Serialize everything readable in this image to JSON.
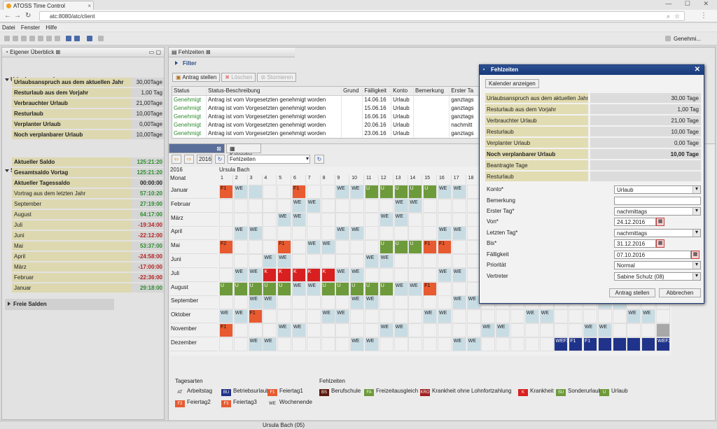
{
  "browser": {
    "tab_title": "ATOSS Time Control",
    "url": "atc:8080/atc/client"
  },
  "menu": [
    "Datei",
    "Fenster",
    "Hilfe"
  ],
  "toolbar_right": "Genehmi...",
  "left": {
    "title": "Eigener Überblick",
    "urlaub_title": "Urlaubsanspruch",
    "urlaub": [
      {
        "label": "Urlaubsanspruch aus dem aktuellen Jahr",
        "value": "30,00Tage",
        "bold": true
      },
      {
        "label": "Resturlaub aus dem Vorjahr",
        "value": "1,00 Tag",
        "bold": true
      },
      {
        "label": "Verbrauchter Urlaub",
        "value": "21,00Tage",
        "bold": true
      },
      {
        "label": "Resturlaub",
        "value": "10,00Tage",
        "bold": true
      },
      {
        "label": "Verplanter Urlaub",
        "value": "0,00Tage",
        "bold": true
      },
      {
        "label": "Noch verplanbarer Urlaub",
        "value": "10,00Tage",
        "bold": true
      }
    ],
    "salden_title": "Salden",
    "salden": [
      {
        "label": "Aktueller Saldo",
        "value": "125:21:20",
        "bold": true,
        "color": "pos"
      },
      {
        "label": "Gesamtsaldo Vortag",
        "value": "125:21:20",
        "bold": true,
        "color": "pos"
      },
      {
        "label": "Aktueller Tagessaldo",
        "value": "00:00:00",
        "bold": true,
        "color": ""
      },
      {
        "label": "Vortrag aus dem letzten Jahr",
        "value": "57:10:20",
        "bold": false,
        "color": "pos"
      },
      {
        "label": "September",
        "value": "27:19:00",
        "bold": false,
        "color": "pos"
      },
      {
        "label": "August",
        "value": "64:17:00",
        "bold": false,
        "color": "pos"
      },
      {
        "label": "Juli",
        "value": "-19:34:00",
        "bold": false,
        "color": "neg"
      },
      {
        "label": "Juni",
        "value": "-22:12:00",
        "bold": false,
        "color": "neg"
      },
      {
        "label": "Mai",
        "value": "53:37:00",
        "bold": false,
        "color": "pos"
      },
      {
        "label": "April",
        "value": "-24:58:00",
        "bold": false,
        "color": "neg"
      },
      {
        "label": "März",
        "value": "-17:00:00",
        "bold": false,
        "color": "neg"
      },
      {
        "label": "Februar",
        "value": "-22:36:00",
        "bold": false,
        "color": "neg"
      },
      {
        "label": "Januar",
        "value": "29:18:00",
        "bold": false,
        "color": "pos"
      }
    ],
    "freie_title": "Freie Salden"
  },
  "main": {
    "title": "Fehlzeiten",
    "filter": "Filter",
    "buttons": {
      "antrag": "Antrag stellen",
      "loeschen": "Löschen",
      "stornieren": "Stornieren"
    },
    "columns": [
      "Status",
      "Status-Beschreibung",
      "Grund",
      "Fälligkeit",
      "Konto",
      "Bemerkung",
      "Erster Ta"
    ],
    "rows": [
      [
        "Genehmigt",
        "Antrag ist vom Vorgesetzten genehmigt worden",
        "",
        "14.06.16",
        "Urlaub",
        "",
        "ganztags"
      ],
      [
        "Genehmigt",
        "Antrag ist vom Vorgesetzten genehmigt worden",
        "",
        "15.06.16",
        "Urlaub",
        "",
        "ganztags"
      ],
      [
        "Genehmigt",
        "Antrag ist vom Vorgesetzten genehmigt worden",
        "",
        "16.06.16",
        "Urlaub",
        "",
        "ganztags"
      ],
      [
        "Genehmigt",
        "Antrag ist vom Vorgesetzten genehmigt worden",
        "",
        "20.06.16",
        "Urlaub",
        "",
        "nachmitt"
      ],
      [
        "Genehmigt",
        "Antrag ist vom Vorgesetzten genehmigt worden",
        "",
        "23.06.16",
        "Urlaub",
        "",
        "ganztags"
      ]
    ]
  },
  "calendar": {
    "tab": "Kalender",
    "year": "2016",
    "select": "Fehlzeiten",
    "year_label": "2016",
    "person": "Ursula Bach",
    "month_header": "Monat",
    "months": [
      "Januar",
      "Februar",
      "März",
      "April",
      "Mai",
      "Juni",
      "Juli",
      "August",
      "September",
      "Oktober",
      "November",
      "Dezember"
    ],
    "days": [
      "1",
      "2",
      "3",
      "4",
      "5",
      "6",
      "7",
      "8",
      "9",
      "10",
      "11",
      "12",
      "13",
      "14",
      "15",
      "16",
      "17",
      "18",
      "19",
      "20",
      "21",
      "22",
      "23",
      "24",
      "25",
      "26",
      "27",
      "28",
      "29",
      "30",
      "31"
    ],
    "cells": [
      [
        [
          0,
          "F1",
          "F1"
        ],
        [
          1,
          "WE",
          "WE"
        ],
        [
          2,
          "WE",
          ""
        ],
        [
          5,
          "F1",
          "F1"
        ],
        [
          8,
          "WE",
          "WE"
        ],
        [
          9,
          "WE",
          "WE"
        ],
        [
          10,
          "U",
          "U"
        ],
        [
          11,
          "U",
          "U"
        ],
        [
          12,
          "U",
          "U"
        ],
        [
          13,
          "U",
          "U"
        ],
        [
          14,
          "U",
          "U"
        ],
        [
          15,
          "WE",
          "WE"
        ],
        [
          16,
          "WE",
          "WE"
        ]
      ],
      [
        [
          5,
          "WE",
          "WE"
        ],
        [
          6,
          "WE",
          "WE"
        ],
        [
          12,
          "WE",
          "WE"
        ],
        [
          13,
          "WE",
          "WE"
        ]
      ],
      [
        [
          4,
          "WE",
          "WE"
        ],
        [
          5,
          "WE",
          "WE"
        ],
        [
          11,
          "WE",
          "WE"
        ],
        [
          12,
          "WE",
          "WE"
        ]
      ],
      [
        [
          1,
          "WE",
          "WE"
        ],
        [
          2,
          "WE",
          "WE"
        ],
        [
          8,
          "WE",
          "WE"
        ],
        [
          9,
          "WE",
          "WE"
        ],
        [
          15,
          "WE",
          "WE"
        ],
        [
          16,
          "WE",
          "WE"
        ]
      ],
      [
        [
          0,
          "F2",
          "F2"
        ],
        [
          4,
          "F1",
          "F1"
        ],
        [
          6,
          "WE",
          "WE"
        ],
        [
          7,
          "WE",
          "WE"
        ],
        [
          11,
          "U",
          "U"
        ],
        [
          12,
          "U",
          "U"
        ],
        [
          13,
          "U",
          "U"
        ],
        [
          14,
          "F1",
          "F1"
        ],
        [
          15,
          "F1",
          "F1"
        ]
      ],
      [
        [
          3,
          "WE",
          "WE"
        ],
        [
          4,
          "WE",
          "WE"
        ],
        [
          10,
          "WE",
          "WE"
        ],
        [
          11,
          "WE",
          "WE"
        ]
      ],
      [
        [
          1,
          "WE",
          "WE"
        ],
        [
          2,
          "WE",
          "WE"
        ],
        [
          3,
          "K",
          "K"
        ],
        [
          4,
          "K",
          "K"
        ],
        [
          5,
          "K",
          "K"
        ],
        [
          6,
          "K",
          "K"
        ],
        [
          7,
          "K",
          "K"
        ],
        [
          8,
          "WE",
          "WE"
        ],
        [
          9,
          "WE",
          "WE"
        ],
        [
          15,
          "WE",
          "WE"
        ],
        [
          16,
          "WE",
          "WE"
        ]
      ],
      [
        [
          0,
          "U",
          "U"
        ],
        [
          1,
          "U",
          "U"
        ],
        [
          2,
          "U",
          "U"
        ],
        [
          3,
          "U",
          "U"
        ],
        [
          4,
          "U",
          "U"
        ],
        [
          5,
          "WE",
          "WE"
        ],
        [
          6,
          "WE",
          "WE"
        ],
        [
          7,
          "U",
          "U"
        ],
        [
          8,
          "U",
          "U"
        ],
        [
          9,
          "U",
          "U"
        ],
        [
          10,
          "U",
          "U"
        ],
        [
          11,
          "U",
          "U"
        ],
        [
          12,
          "WE",
          "WE"
        ],
        [
          13,
          "WE",
          "WE"
        ],
        [
          14,
          "F1",
          "F1"
        ]
      ],
      [
        [
          2,
          "WE",
          "WE"
        ],
        [
          3,
          "WE",
          "WE"
        ],
        [
          9,
          "WE",
          "WE"
        ],
        [
          10,
          "WE",
          "WE"
        ],
        [
          16,
          "WE",
          "WE"
        ],
        [
          17,
          "WE",
          "WE"
        ],
        [
          26,
          "WE",
          "WE"
        ],
        [
          27,
          "WE",
          "WE"
        ]
      ],
      [
        [
          0,
          "WE",
          "WE"
        ],
        [
          1,
          "WE",
          "WE"
        ],
        [
          2,
          "F1",
          "F1"
        ],
        [
          7,
          "WE",
          "WE"
        ],
        [
          8,
          "WE",
          "WE"
        ],
        [
          14,
          "WE",
          "WE"
        ],
        [
          15,
          "WE",
          "WE"
        ],
        [
          21,
          "WE",
          "WE"
        ],
        [
          22,
          "WE",
          "WE"
        ],
        [
          28,
          "WE",
          "WE"
        ],
        [
          29,
          "WE",
          "WE"
        ]
      ],
      [
        [
          0,
          "F1",
          "F1"
        ],
        [
          4,
          "WE",
          "WE"
        ],
        [
          5,
          "WE",
          "WE"
        ],
        [
          11,
          "WE",
          "WE"
        ],
        [
          12,
          "WE",
          "WE"
        ],
        [
          18,
          "WE",
          "WE"
        ],
        [
          19,
          "WE",
          "WE"
        ],
        [
          25,
          "WE",
          "WE"
        ],
        [
          26,
          "WE",
          "WE"
        ],
        [
          30,
          "gray",
          ""
        ]
      ],
      [
        [
          2,
          "WE",
          "WE"
        ],
        [
          3,
          "WE",
          "WE"
        ],
        [
          9,
          "WE",
          "WE"
        ],
        [
          10,
          "WE",
          "WE"
        ],
        [
          16,
          "WE",
          "WE"
        ],
        [
          17,
          "WE",
          "WE"
        ],
        [
          23,
          "WEF2",
          "WEF2"
        ],
        [
          24,
          "BU",
          "F1"
        ],
        [
          25,
          "BU",
          "F1"
        ],
        [
          26,
          "BU",
          ""
        ],
        [
          27,
          "BU",
          ""
        ],
        [
          28,
          "BU",
          ""
        ],
        [
          29,
          "BU",
          ""
        ],
        [
          30,
          "WEF2",
          "WEF2"
        ]
      ]
    ]
  },
  "legend": {
    "tagesarten_title": "Tagesarten",
    "fehlzeiten_title": "Fehlzeiten",
    "tagesarten": [
      {
        "code": "AT",
        "label": "Arbeitstag",
        "color": ""
      },
      {
        "code": "BU",
        "label": "Betriebsurlaub",
        "color": "#20338a"
      },
      {
        "code": "F1",
        "label": "Feiertag1",
        "color": "#e85a30"
      },
      {
        "code": "F2",
        "label": "Feiertag2",
        "color": "#e85a30"
      },
      {
        "code": "F3",
        "label": "Feiertag3",
        "color": "#e85a30"
      },
      {
        "code": "WE",
        "label": "Wochenende",
        "color": ""
      }
    ],
    "fehlzeiten": [
      {
        "code": "BS",
        "label": "Berufschule",
        "color": "#5a1a10"
      },
      {
        "code": "FA",
        "label": "Freizeitausgleich",
        "color": "#6d9a3a"
      },
      {
        "code": "KRO",
        "label": "Krankheit ohne Lohnfortzahlung",
        "color": "#a02020"
      },
      {
        "code": "K",
        "label": "Krankheit",
        "color": "#d82020"
      },
      {
        "code": "SU",
        "label": "Sonderurlaub",
        "color": "#6d9a3a"
      },
      {
        "code": "U",
        "label": "Urlaub",
        "color": "#6d9a3a"
      }
    ]
  },
  "dialog": {
    "title": "Fehlzeiten",
    "show_cal": "Kalender anzeigen",
    "info": [
      {
        "label": "Urlaubsanspruch aus dem aktuellen Jahr",
        "value": "30,00 Tage",
        "bold": false
      },
      {
        "label": "Resturlaub aus dem Vorjahr",
        "value": "1,00 Tag",
        "bold": false
      },
      {
        "label": "Verbrauchter Urlaub",
        "value": "21,00 Tage",
        "bold": false
      },
      {
        "label": "Resturlaub",
        "value": "10,00 Tage",
        "bold": false
      },
      {
        "label": "Verplanter Urlaub",
        "value": "0,00 Tage",
        "bold": false
      },
      {
        "label": "Noch verplanbarer Urlaub",
        "value": "10,00 Tage",
        "bold": true
      }
    ],
    "beantragte": "Beantragte Tage",
    "resturlaub": "Resturlaub",
    "form": {
      "konto_label": "Konto*",
      "konto": "Urlaub",
      "bemerkung_label": "Bemerkung",
      "bemerkung": "",
      "erster_label": "Erster Tag*",
      "erster": "nachmittags",
      "von_label": "Von*",
      "von": "24.12.2016",
      "letzter_label": "Letzten Tag*",
      "letzter": "nachmittags",
      "bis_label": "Bis*",
      "bis": "31.12.2016",
      "faellig_label": "Fälligkeit",
      "faellig": "07.10.2016",
      "prio_label": "Priorität",
      "prio": "Normal",
      "vertreter_label": "Vertreter",
      "vertreter": "Sabine Schulz (08)"
    },
    "submit": "Antrag stellen",
    "cancel": "Abbrechen"
  },
  "status": {
    "user": "Ursula Bach (05)"
  }
}
